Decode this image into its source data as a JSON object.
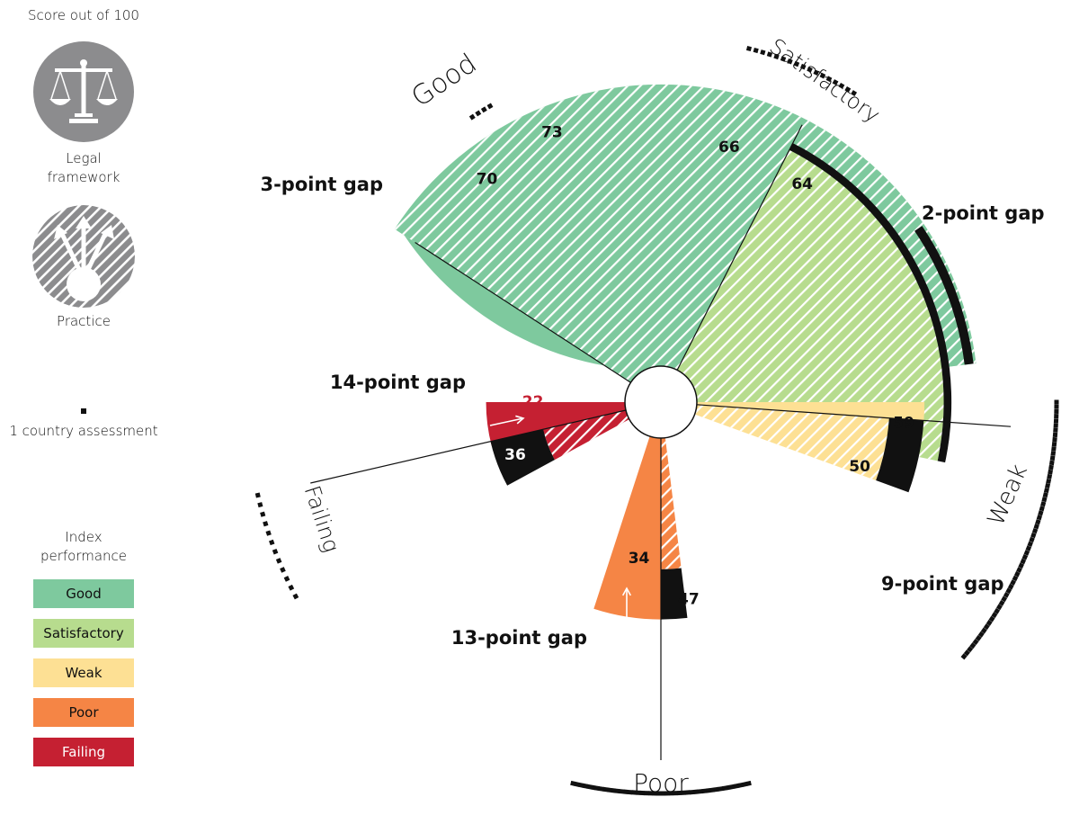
{
  "legend": {
    "score_label": "Score out of 100",
    "legal_label": "Legal\nframework",
    "practice_label": "Practice",
    "dot_label": "1 country assessment",
    "index_label": "Index\nperformance",
    "levels": [
      {
        "label": "Good",
        "color": "#7ec99e",
        "text_color": "#111111"
      },
      {
        "label": "Satisfactory",
        "color": "#b7dc8e",
        "text_color": "#111111"
      },
      {
        "label": "Weak",
        "color": "#fde094",
        "text_color": "#111111"
      },
      {
        "label": "Poor",
        "color": "#f58545",
        "text_color": "#111111"
      },
      {
        "label": "Failing",
        "color": "#c52032",
        "text_color": "#ffffff"
      }
    ]
  },
  "chart_data": {
    "type": "radial-bar",
    "max_score": 100,
    "categories": [
      {
        "name": "Good",
        "color": "#7ec99e",
        "legal": 73,
        "practice": 70,
        "gap_label": "3-point gap",
        "countries": 4
      },
      {
        "name": "Satisfactory",
        "color": "#b7dc8e",
        "legal": 66,
        "practice": 64,
        "gap_label": "2-point gap",
        "countries": 17
      },
      {
        "name": "Weak",
        "color": "#fde094",
        "legal": 59,
        "practice": 50,
        "gap_label": "9-point gap",
        "countries": 60
      },
      {
        "name": "Poor",
        "color": "#f58545",
        "legal": 47,
        "practice": 34,
        "gap_label": "13-point gap",
        "countries": 44
      },
      {
        "name": "Failing",
        "color": "#c52032",
        "legal": 36,
        "practice": 22,
        "gap_label": "14-point gap",
        "countries": 12
      }
    ]
  }
}
